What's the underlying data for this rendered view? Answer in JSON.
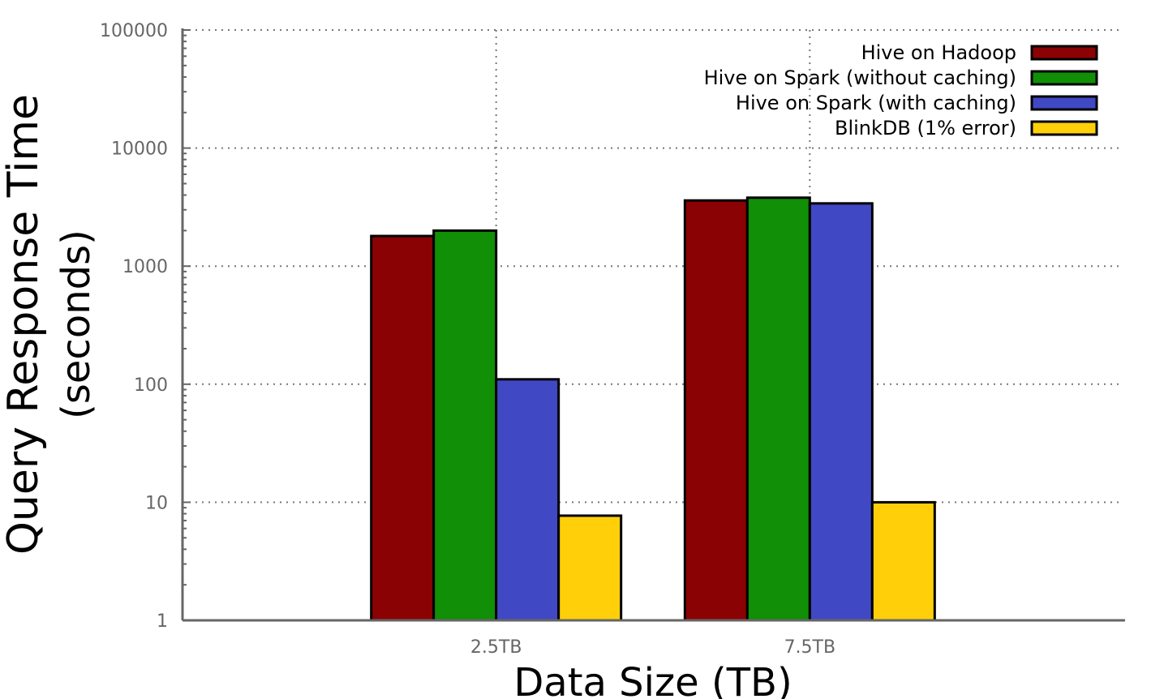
{
  "chart_data": {
    "type": "bar",
    "title": "",
    "xlabel": "Data Size (TB)",
    "ylabel_lines": [
      "Query Response Time",
      "(seconds)"
    ],
    "yscale": "log",
    "ylim": [
      1,
      100000
    ],
    "yticks": [
      1,
      10,
      100,
      1000,
      10000,
      100000
    ],
    "ytick_labels": [
      "1",
      "10",
      "100",
      "1000",
      "10000",
      "100000"
    ],
    "categories": [
      "2.5TB",
      "7.5TB"
    ],
    "grid": true,
    "legend_position": "top-right",
    "series": [
      {
        "name": "Hive on Hadoop",
        "color": "#8b0204",
        "values": [
          1800,
          3600
        ]
      },
      {
        "name": "Hive on Spark (without caching)",
        "color": "#118f06",
        "values": [
          2000,
          3800
        ]
      },
      {
        "name": "Hive on Spark (with caching)",
        "color": "#4048c4",
        "values": [
          110,
          3400
        ]
      },
      {
        "name": "BlinkDB (1% error)",
        "color": "#ffd00a",
        "values": [
          7.7,
          10
        ]
      }
    ]
  }
}
